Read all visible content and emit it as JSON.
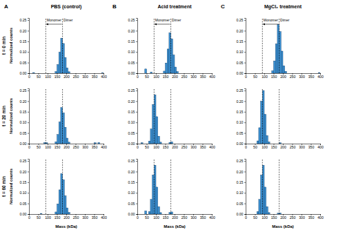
{
  "chart_data": [
    {
      "type": "histogram",
      "panel": "A",
      "title": "PBS (control)",
      "row_label": "t = 0 min",
      "ylabel": "Normalized counts",
      "color": "#3a8fd0",
      "bins": [
        0,
        10,
        20,
        30,
        40,
        50,
        60,
        70,
        80,
        90,
        100,
        110,
        120,
        130,
        140,
        150,
        160,
        170,
        180,
        190,
        200,
        210,
        220,
        230,
        240,
        250,
        260,
        270,
        280,
        290,
        300,
        310,
        320,
        330,
        340,
        350,
        360,
        370,
        380,
        390,
        400
      ],
      "counts": [
        0,
        0,
        0.003,
        0,
        0,
        0,
        0,
        0,
        0,
        0,
        0,
        0,
        0,
        0,
        0.008,
        0.041,
        0.099,
        0.165,
        0.14,
        0.074,
        0.025,
        0.007,
        0,
        0,
        0,
        0,
        0,
        0,
        0,
        0,
        0,
        0,
        0,
        0,
        0,
        0,
        0,
        0,
        0,
        0.002
      ],
      "xlim": [
        0,
        400
      ],
      "ylim": [
        0,
        0.26
      ],
      "xticks": [
        0,
        50,
        100,
        150,
        200,
        250,
        300,
        350,
        400
      ],
      "yticks": [
        {
          "value": 0,
          "label": "0.00"
        },
        {
          "value": 0.05,
          "label": "0.05"
        },
        {
          "value": 0.1,
          "label": "0.10"
        },
        {
          "value": 0.15,
          "label": "0.15"
        },
        {
          "value": 0.2,
          "label": "0.20"
        },
        {
          "value": 0.25,
          "label": "0.25"
        }
      ],
      "ref_lines": [
        {
          "value": 90,
          "label": "Monomer"
        },
        {
          "value": 180,
          "label": "Dimer"
        }
      ]
    },
    {
      "type": "histogram",
      "panel": "B",
      "title": "Acid treatment",
      "color": "#3a8fd0",
      "bins": [
        0,
        10,
        20,
        30,
        40,
        50,
        60,
        70,
        80,
        90,
        100,
        110,
        120,
        130,
        140,
        150,
        160,
        170,
        180,
        190,
        200,
        210,
        220,
        230,
        240,
        250,
        260,
        270,
        280,
        290,
        300,
        310,
        320,
        330,
        340,
        350,
        360,
        370,
        380,
        390,
        400
      ],
      "counts": [
        0,
        0,
        0,
        0,
        0.02,
        0,
        0,
        0.005,
        0,
        0,
        0,
        0,
        0,
        0,
        0.01,
        0.048,
        0.114,
        0.19,
        0.162,
        0.086,
        0.029,
        0.008,
        0,
        0,
        0,
        0,
        0,
        0,
        0,
        0,
        0,
        0,
        0,
        0,
        0,
        0,
        0,
        0,
        0,
        0
      ],
      "xlim": [
        0,
        400
      ],
      "ylim": [
        0,
        0.26
      ],
      "xticks": [
        0,
        50,
        100,
        150,
        200,
        250,
        300,
        350,
        400
      ],
      "yticks": [
        {
          "value": 0,
          "label": "0.00"
        },
        {
          "value": 0.05,
          "label": "0.05"
        },
        {
          "value": 0.1,
          "label": "0.10"
        },
        {
          "value": 0.15,
          "label": "0.15"
        },
        {
          "value": 0.2,
          "label": "0.20"
        },
        {
          "value": 0.25,
          "label": "0.25"
        }
      ],
      "ref_lines": [
        {
          "value": 90,
          "label": "Monomer"
        },
        {
          "value": 180,
          "label": "Dimer"
        }
      ]
    },
    {
      "type": "histogram",
      "panel": "C",
      "title": "MgCl₂ treatment",
      "color": "#3a8fd0",
      "bins": [
        0,
        10,
        20,
        30,
        40,
        50,
        60,
        70,
        80,
        90,
        100,
        110,
        120,
        130,
        140,
        150,
        160,
        170,
        180,
        190,
        200,
        210,
        220,
        230,
        240,
        250,
        260,
        270,
        280,
        290,
        300,
        310,
        320,
        330,
        340,
        350,
        360,
        370,
        380,
        390,
        400
      ],
      "counts": [
        0,
        0,
        0,
        0,
        0,
        0,
        0,
        0,
        0,
        0,
        0,
        0,
        0,
        0,
        0.012,
        0.058,
        0.138,
        0.23,
        0.196,
        0.104,
        0.035,
        0.009,
        0,
        0,
        0,
        0,
        0,
        0,
        0,
        0,
        0,
        0,
        0,
        0,
        0,
        0,
        0,
        0,
        0,
        0.003
      ],
      "xlim": [
        0,
        400
      ],
      "ylim": [
        0,
        0.26
      ],
      "xticks": [
        0,
        50,
        100,
        150,
        200,
        250,
        300,
        350,
        400
      ],
      "yticks": [
        {
          "value": 0,
          "label": "0.00"
        },
        {
          "value": 0.05,
          "label": "0.05"
        },
        {
          "value": 0.1,
          "label": "0.10"
        },
        {
          "value": 0.15,
          "label": "0.15"
        },
        {
          "value": 0.2,
          "label": "0.20"
        },
        {
          "value": 0.25,
          "label": "0.25"
        }
      ],
      "ref_lines": [
        {
          "value": 90,
          "label": "Monomer"
        },
        {
          "value": 180,
          "label": "Dimer"
        }
      ]
    },
    {
      "type": "histogram",
      "row_label": "t = 20 min",
      "ylabel": "Normalized counts",
      "color": "#3a8fd0",
      "bins": [
        0,
        10,
        20,
        30,
        40,
        50,
        60,
        70,
        80,
        90,
        100,
        110,
        120,
        130,
        140,
        150,
        160,
        170,
        180,
        190,
        200,
        210,
        220,
        230,
        240,
        250,
        260,
        270,
        280,
        290,
        300,
        310,
        320,
        330,
        340,
        350,
        360,
        370,
        380,
        390,
        400
      ],
      "counts": [
        0,
        0,
        0,
        0,
        0,
        0,
        0,
        0,
        0.005,
        0.004,
        0,
        0,
        0,
        0,
        0.009,
        0.043,
        0.102,
        0.17,
        0.145,
        0.077,
        0.026,
        0.007,
        0,
        0,
        0,
        0,
        0,
        0,
        0,
        0,
        0,
        0,
        0,
        0,
        0,
        0.004,
        0,
        0.005,
        0,
        0
      ],
      "xlim": [
        0,
        400
      ],
      "ylim": [
        0,
        0.26
      ],
      "xticks": [
        0,
        50,
        100,
        150,
        200,
        250,
        300,
        350,
        400
      ],
      "yticks": [
        {
          "value": 0,
          "label": "0.00"
        },
        {
          "value": 0.05,
          "label": "0.05"
        },
        {
          "value": 0.1,
          "label": "0.10"
        },
        {
          "value": 0.15,
          "label": "0.15"
        },
        {
          "value": 0.2,
          "label": "0.20"
        },
        {
          "value": 0.25,
          "label": "0.25"
        }
      ],
      "ref_lines": [
        {
          "value": 90
        },
        {
          "value": 180
        }
      ]
    },
    {
      "type": "histogram",
      "color": "#3a8fd0",
      "bins": [
        0,
        10,
        20,
        30,
        40,
        50,
        60,
        70,
        80,
        90,
        100,
        110,
        120,
        130,
        140,
        150,
        160,
        170,
        180,
        190,
        200,
        210,
        220,
        230,
        240,
        250,
        260,
        270,
        280,
        290,
        300,
        310,
        320,
        330,
        340,
        350,
        360,
        370,
        380,
        390,
        400
      ],
      "counts": [
        0,
        0,
        0.004,
        0,
        0,
        0,
        0.012,
        0.069,
        0.184,
        0.23,
        0.127,
        0.035,
        0.007,
        0,
        0,
        0,
        0,
        0.006,
        0.008,
        0,
        0,
        0,
        0,
        0,
        0,
        0,
        0,
        0,
        0,
        0,
        0,
        0,
        0,
        0,
        0,
        0,
        0,
        0,
        0,
        0
      ],
      "xlim": [
        0,
        400
      ],
      "ylim": [
        0,
        0.26
      ],
      "xticks": [
        0,
        50,
        100,
        150,
        200,
        250,
        300,
        350,
        400
      ],
      "yticks": [
        {
          "value": 0,
          "label": "0.00"
        },
        {
          "value": 0.05,
          "label": "0.05"
        },
        {
          "value": 0.1,
          "label": "0.10"
        },
        {
          "value": 0.15,
          "label": "0.15"
        },
        {
          "value": 0.2,
          "label": "0.20"
        },
        {
          "value": 0.25,
          "label": "0.25"
        }
      ],
      "ref_lines": [
        {
          "value": 90
        },
        {
          "value": 180
        }
      ]
    },
    {
      "type": "histogram",
      "color": "#3a8fd0",
      "bins": [
        0,
        10,
        20,
        30,
        40,
        50,
        60,
        70,
        80,
        90,
        100,
        110,
        120,
        130,
        140,
        150,
        160,
        170,
        180,
        190,
        200,
        210,
        220,
        230,
        240,
        250,
        260,
        270,
        280,
        290,
        300,
        310,
        320,
        330,
        340,
        350,
        360,
        370,
        380,
        390,
        400
      ],
      "counts": [
        0,
        0,
        0,
        0,
        0,
        0,
        0.013,
        0.075,
        0.2,
        0.25,
        0.138,
        0.038,
        0.008,
        0,
        0,
        0,
        0,
        0,
        0.004,
        0,
        0,
        0,
        0,
        0,
        0,
        0,
        0,
        0,
        0,
        0,
        0,
        0,
        0,
        0,
        0,
        0,
        0,
        0,
        0,
        0
      ],
      "xlim": [
        0,
        400
      ],
      "ylim": [
        0,
        0.26
      ],
      "xticks": [
        0,
        50,
        100,
        150,
        200,
        250,
        300,
        350,
        400
      ],
      "yticks": [
        {
          "value": 0,
          "label": "0.00"
        },
        {
          "value": 0.05,
          "label": "0.05"
        },
        {
          "value": 0.1,
          "label": "0.10"
        },
        {
          "value": 0.15,
          "label": "0.15"
        },
        {
          "value": 0.2,
          "label": "0.20"
        },
        {
          "value": 0.25,
          "label": "0.25"
        }
      ],
      "ref_lines": [
        {
          "value": 90
        },
        {
          "value": 180
        }
      ]
    },
    {
      "type": "histogram",
      "row_label": "t = 60 min",
      "ylabel": "Normalized counts",
      "xlabel": "Mass (kDa)",
      "color": "#3a8fd0",
      "bins": [
        0,
        10,
        20,
        30,
        40,
        50,
        60,
        70,
        80,
        90,
        100,
        110,
        120,
        130,
        140,
        150,
        160,
        170,
        180,
        190,
        200,
        210,
        220,
        230,
        240,
        250,
        260,
        270,
        280,
        290,
        300,
        310,
        320,
        330,
        340,
        350,
        360,
        370,
        380,
        390,
        400
      ],
      "counts": [
        0,
        0,
        0,
        0,
        0,
        0,
        0.003,
        0,
        0,
        0,
        0,
        0,
        0,
        0,
        0.01,
        0.048,
        0.114,
        0.19,
        0.162,
        0.086,
        0.029,
        0.008,
        0,
        0,
        0,
        0,
        0,
        0,
        0,
        0,
        0,
        0,
        0,
        0,
        0,
        0,
        0,
        0,
        0,
        0
      ],
      "xlim": [
        0,
        400
      ],
      "ylim": [
        0,
        0.26
      ],
      "xticks": [
        0,
        50,
        100,
        150,
        200,
        250,
        300,
        350,
        400
      ],
      "yticks": [
        {
          "value": 0,
          "label": "0.00"
        },
        {
          "value": 0.05,
          "label": "0.05"
        },
        {
          "value": 0.1,
          "label": "0.10"
        },
        {
          "value": 0.15,
          "label": "0.15"
        },
        {
          "value": 0.2,
          "label": "0.20"
        },
        {
          "value": 0.25,
          "label": "0.25"
        }
      ],
      "ref_lines": [
        {
          "value": 90
        },
        {
          "value": 180
        }
      ]
    },
    {
      "type": "histogram",
      "xlabel": "Mass (kDa)",
      "color": "#3a8fd0",
      "bins": [
        0,
        10,
        20,
        30,
        40,
        50,
        60,
        70,
        80,
        90,
        100,
        110,
        120,
        130,
        140,
        150,
        160,
        170,
        180,
        190,
        200,
        210,
        220,
        230,
        240,
        250,
        260,
        270,
        280,
        290,
        300,
        310,
        320,
        330,
        340,
        350,
        360,
        370,
        380,
        390,
        400
      ],
      "counts": [
        0,
        0,
        0,
        0,
        0.015,
        0,
        0.012,
        0.069,
        0.184,
        0.23,
        0.127,
        0.035,
        0.007,
        0,
        0,
        0,
        0,
        0.008,
        0.01,
        0,
        0,
        0,
        0,
        0,
        0,
        0,
        0,
        0,
        0,
        0,
        0,
        0,
        0,
        0,
        0,
        0,
        0,
        0,
        0,
        0
      ],
      "xlim": [
        0,
        400
      ],
      "ylim": [
        0,
        0.26
      ],
      "xticks": [
        0,
        50,
        100,
        150,
        200,
        250,
        300,
        350,
        400
      ],
      "yticks": [
        {
          "value": 0,
          "label": "0.00"
        },
        {
          "value": 0.05,
          "label": "0.05"
        },
        {
          "value": 0.1,
          "label": "0.10"
        },
        {
          "value": 0.15,
          "label": "0.15"
        },
        {
          "value": 0.2,
          "label": "0.20"
        },
        {
          "value": 0.25,
          "label": "0.25"
        }
      ],
      "ref_lines": [
        {
          "value": 90
        },
        {
          "value": 180
        }
      ]
    },
    {
      "type": "histogram",
      "xlabel": "Mass (kDa)",
      "color": "#3a8fd0",
      "bins": [
        0,
        10,
        20,
        30,
        40,
        50,
        60,
        70,
        80,
        90,
        100,
        110,
        120,
        130,
        140,
        150,
        160,
        170,
        180,
        190,
        200,
        210,
        220,
        230,
        240,
        250,
        260,
        270,
        280,
        290,
        300,
        310,
        320,
        330,
        340,
        350,
        360,
        370,
        380,
        390,
        400
      ],
      "counts": [
        0,
        0,
        0,
        0,
        0,
        0,
        0.012,
        0.069,
        0.184,
        0.23,
        0.127,
        0.035,
        0.007,
        0,
        0,
        0,
        0,
        0.004,
        0.005,
        0,
        0,
        0,
        0,
        0,
        0,
        0,
        0,
        0,
        0,
        0,
        0,
        0,
        0,
        0,
        0,
        0,
        0,
        0,
        0,
        0
      ],
      "xlim": [
        0,
        400
      ],
      "ylim": [
        0,
        0.26
      ],
      "xticks": [
        0,
        50,
        100,
        150,
        200,
        250,
        300,
        350,
        400
      ],
      "yticks": [
        {
          "value": 0,
          "label": "0.00"
        },
        {
          "value": 0.05,
          "label": "0.05"
        },
        {
          "value": 0.1,
          "label": "0.10"
        },
        {
          "value": 0.15,
          "label": "0.15"
        },
        {
          "value": 0.2,
          "label": "0.20"
        },
        {
          "value": 0.25,
          "label": "0.25"
        }
      ],
      "ref_lines": [
        {
          "value": 90
        },
        {
          "value": 180
        }
      ]
    }
  ]
}
